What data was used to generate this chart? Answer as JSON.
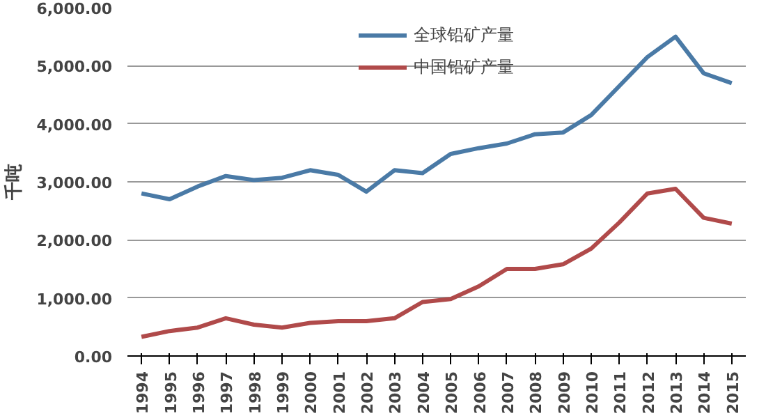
{
  "chart_data": {
    "type": "line",
    "ylabel": "千吨",
    "categories": [
      "1994",
      "1995",
      "1996",
      "1997",
      "1998",
      "1999",
      "2000",
      "2001",
      "2002",
      "2003",
      "2004",
      "2005",
      "2006",
      "2007",
      "2008",
      "2009",
      "2010",
      "2011",
      "2012",
      "2013",
      "2014",
      "2015"
    ],
    "series": [
      {
        "name": "全球铅矿产量",
        "color": "#4a7aa6",
        "values": [
          2800,
          2700,
          2920,
          3100,
          3030,
          3070,
          3200,
          3120,
          2830,
          3200,
          3150,
          3480,
          3580,
          3660,
          3820,
          3850,
          4150,
          4650,
          5150,
          5500,
          4870,
          4700
        ]
      },
      {
        "name": "中国铅矿产量",
        "color": "#b04a4a",
        "values": [
          330,
          430,
          490,
          650,
          540,
          490,
          570,
          600,
          600,
          650,
          930,
          980,
          1200,
          1500,
          1500,
          1580,
          1850,
          2300,
          2800,
          2880,
          2380,
          2280
        ]
      }
    ],
    "ylim": [
      0,
      6000
    ],
    "yticks": [
      {
        "value": 0,
        "label": "0.00"
      },
      {
        "value": 1000,
        "label": "1,000.00"
      },
      {
        "value": 2000,
        "label": "2,000.00"
      },
      {
        "value": 3000,
        "label": "3,000.00"
      },
      {
        "value": 4000,
        "label": "4,000.00"
      },
      {
        "value": 5000,
        "label": "5,000.00"
      },
      {
        "value": 6000,
        "label": "6,000.00"
      }
    ],
    "grid": "y",
    "legend": "top",
    "marker": "none",
    "line_style": "solid"
  }
}
